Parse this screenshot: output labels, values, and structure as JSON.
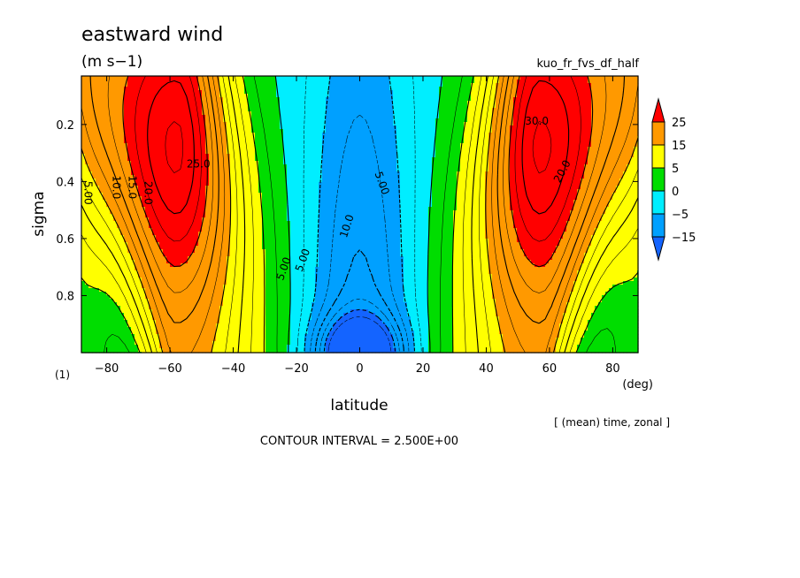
{
  "chart_data": {
    "type": "heatmap",
    "title": "eastward wind",
    "units": "(m s−1)",
    "run_name": "kuo_fr_fvs_df_half",
    "xlabel": "latitude",
    "x_unit": "(deg)",
    "ylabel": "sigma",
    "y_unit": "(1)",
    "xlim": [
      -88,
      88
    ],
    "ylim": [
      1.0,
      0.03
    ],
    "x_ticks": [
      -80,
      -60,
      -40,
      -20,
      0,
      20,
      40,
      60,
      80
    ],
    "x_tick_labels": [
      "−80",
      "−60",
      "−40",
      "−20",
      "0",
      "20",
      "40",
      "60",
      "80"
    ],
    "y_ticks": [
      0.2,
      0.4,
      0.6,
      0.8
    ],
    "y_tick_labels": [
      "0.2",
      "0.4",
      "0.6",
      "0.8"
    ],
    "averaging_note": "[ (mean) time, zonal ]",
    "contour_interval_text": "CONTOUR INTERVAL = 2.500E+00",
    "color_levels": [
      -15,
      -5,
      0,
      5,
      15,
      25
    ],
    "colorbar_labels": [
      "25",
      "15",
      "5",
      "0",
      "−5",
      "−15"
    ],
    "colors": [
      "#1464ff",
      "#00a0ff",
      "#00eeff",
      "#00dd00",
      "#ffff00",
      "#ff9900",
      "#ff0000"
    ],
    "contour_labels": [
      "5.00",
      "10.0",
      "15.0",
      "20.0",
      "25.0",
      "30.0",
      "5.00",
      "10.0"
    ],
    "field_model": {
      "jet_peak_ms": 33,
      "jet_lat_deg": [
        -58,
        57
      ],
      "jet_peak_sigma": 0.28,
      "surface_min_ms": -19,
      "equatorial_min_ms": -12
    }
  }
}
